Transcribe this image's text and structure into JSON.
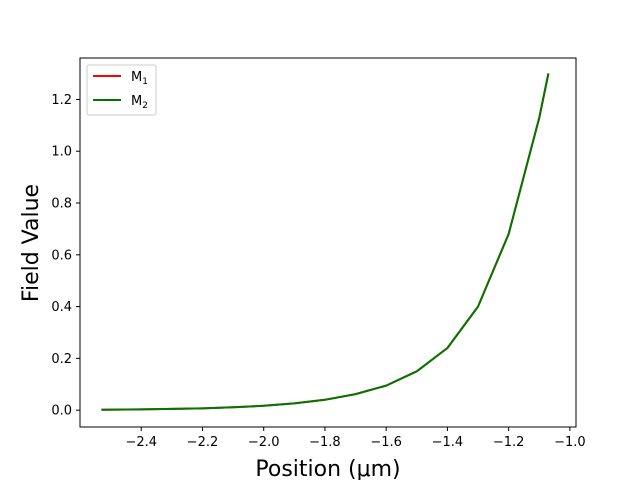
{
  "chart_data": {
    "type": "line",
    "title": "",
    "xlabel": "Position (μm)",
    "ylabel": "Field Value",
    "xlim": [
      -2.6,
      -0.98
    ],
    "ylim": [
      -0.065,
      1.36
    ],
    "xticks": [
      -2.4,
      -2.2,
      -2.0,
      -1.8,
      -1.6,
      -1.4,
      -1.2,
      -1.0
    ],
    "xtick_labels": [
      "−2.4",
      "−2.2",
      "−2.0",
      "−1.8",
      "−1.6",
      "−1.4",
      "−1.2",
      "−1.0"
    ],
    "yticks": [
      0.0,
      0.2,
      0.4,
      0.6,
      0.8,
      1.0,
      1.2
    ],
    "ytick_labels": [
      "0.0",
      "0.2",
      "0.4",
      "0.6",
      "0.8",
      "1.0",
      "1.2"
    ],
    "grid": false,
    "legend_position": "top-left",
    "series": [
      {
        "name": "M1",
        "name_main": "M",
        "name_sub": "1",
        "color": "#ff0000",
        "x": [
          -2.53,
          -2.4,
          -2.3,
          -2.2,
          -2.1,
          -2.0,
          -1.9,
          -1.8,
          -1.7,
          -1.6,
          -1.5,
          -1.4,
          -1.3,
          -1.2,
          -1.1,
          -1.07
        ],
        "y": [
          0.002,
          0.003,
          0.005,
          0.007,
          0.011,
          0.017,
          0.026,
          0.04,
          0.062,
          0.095,
          0.15,
          0.24,
          0.4,
          0.68,
          1.13,
          1.3
        ]
      },
      {
        "name": "M2",
        "name_main": "M",
        "name_sub": "2",
        "color": "#007700",
        "x": [
          -2.53,
          -2.4,
          -2.3,
          -2.2,
          -2.1,
          -2.0,
          -1.9,
          -1.8,
          -1.7,
          -1.6,
          -1.5,
          -1.4,
          -1.3,
          -1.2,
          -1.1,
          -1.07
        ],
        "y": [
          0.002,
          0.003,
          0.005,
          0.007,
          0.011,
          0.017,
          0.026,
          0.04,
          0.062,
          0.095,
          0.15,
          0.24,
          0.4,
          0.68,
          1.13,
          1.3
        ]
      }
    ]
  }
}
